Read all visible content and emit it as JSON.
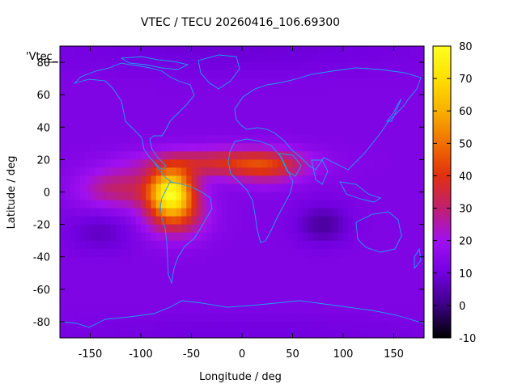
{
  "chart_data": {
    "type": "heatmap",
    "title": "VTEC / TECU 20260416_106.69300",
    "xlabel": "Longitude / deg",
    "ylabel": "Latitude / deg",
    "xlim": [
      -180,
      180
    ],
    "ylim": [
      -90,
      90
    ],
    "x_ticks": [
      -150,
      -100,
      -50,
      0,
      50,
      100,
      150
    ],
    "y_ticks": [
      -80,
      -60,
      -40,
      -20,
      0,
      20,
      40,
      60,
      80
    ],
    "colorbar": {
      "range": [
        -10,
        80
      ],
      "ticks": [
        -10,
        0,
        10,
        20,
        30,
        40,
        50,
        60,
        70,
        80
      ]
    },
    "legend_key": "'Vtec_",
    "colormap": [
      "#000000",
      "#3b0082",
      "#7200e0",
      "#a010f0",
      "#c02070",
      "#e03010",
      "#f07000",
      "#f8b000",
      "#ffe000",
      "#ffff20"
    ],
    "coastline_color": "#1e9ef0",
    "field_features": [
      {
        "name": "background",
        "lon": 0,
        "lat": 0,
        "value": 13
      },
      {
        "name": "equatorial-anomaly-peak",
        "lon": -70,
        "lat": 0,
        "value": 70
      },
      {
        "name": "south-american-crest",
        "lon": -65,
        "lat": -15,
        "value": 52
      },
      {
        "name": "northern-crest",
        "lon": -20,
        "lat": 18,
        "value": 45
      },
      {
        "name": "africa-crest",
        "lon": 25,
        "lat": 15,
        "value": 40
      },
      {
        "name": "southern-depletion",
        "lon": 80,
        "lat": -20,
        "value": 3
      }
    ]
  }
}
